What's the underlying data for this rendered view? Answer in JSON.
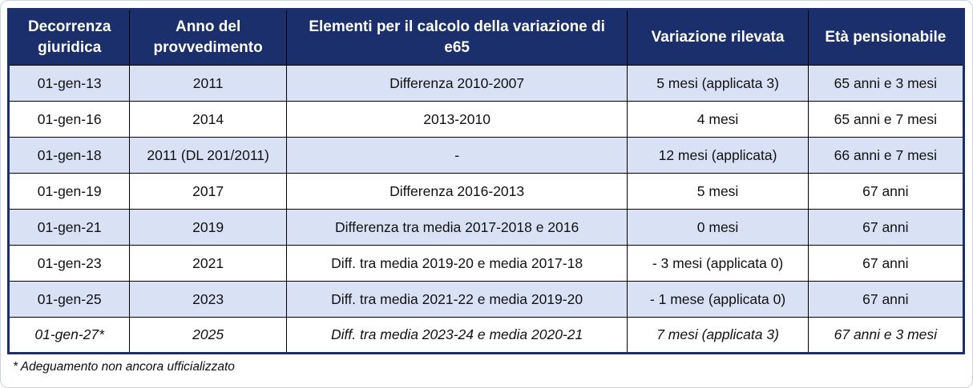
{
  "table": {
    "columns": [
      "Decorrenza giuridica",
      "Anno del provvedimento",
      "Elementi per il calcolo della variazione di e65",
      "Variazione rilevata",
      "Età pensionabile"
    ],
    "rows": [
      {
        "cells": [
          "01-gen-13",
          "2011",
          "Differenza 2010-2007",
          "5 mesi (applicata 3)",
          "65 anni e 3 mesi"
        ],
        "highlight": true,
        "italic": false
      },
      {
        "cells": [
          "01-gen-16",
          "2014",
          "2013-2010",
          "4 mesi",
          "65 anni e 7 mesi"
        ],
        "highlight": false,
        "italic": false
      },
      {
        "cells": [
          "01-gen-18",
          "2011 (DL 201/2011)",
          "-",
          "12 mesi (applicata)",
          "66 anni e 7 mesi"
        ],
        "highlight": true,
        "italic": false
      },
      {
        "cells": [
          "01-gen-19",
          "2017",
          "Differenza 2016-2013",
          "5 mesi",
          "67 anni"
        ],
        "highlight": false,
        "italic": false
      },
      {
        "cells": [
          "01-gen-21",
          "2019",
          "Differenza tra media 2017-2018 e 2016",
          "0 mesi",
          "67 anni"
        ],
        "highlight": true,
        "italic": false
      },
      {
        "cells": [
          "01-gen-23",
          "2021",
          "Diff. tra media 2019-20 e media 2017-18",
          "- 3 mesi (applicata 0)",
          "67 anni"
        ],
        "highlight": false,
        "italic": false
      },
      {
        "cells": [
          "01-gen-25",
          "2023",
          "Diff. tra media 2021-22 e media 2019-20",
          "- 1 mese (applicata 0)",
          "67 anni"
        ],
        "highlight": true,
        "italic": false
      },
      {
        "cells": [
          "01-gen-27*",
          "2025",
          "Diff. tra media 2023-24 e media 2020-21",
          "7 mesi (applicata 3)",
          "67 anni e 3 mesi"
        ],
        "highlight": false,
        "italic": true
      }
    ]
  },
  "footnote": "* Adeguamento non ancora ufficializzato",
  "colors": {
    "header_bg": "#1a2f6b",
    "header_text": "#ffffff",
    "stripe_bg": "#d9e2f5",
    "row_bg": "#ffffff",
    "grid_border": "#000000",
    "outer_border": "#1a2f6b",
    "body_text": "#111111"
  }
}
